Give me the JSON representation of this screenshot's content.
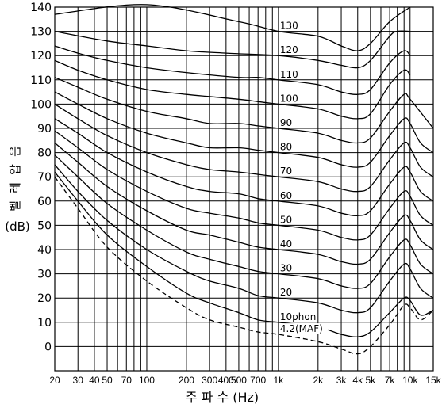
{
  "chart_data": {
    "type": "line",
    "xlabel": "주 파 수 (Hz)",
    "ylabel_lines": [
      "음",
      "압",
      "레",
      "벨",
      "(dB)"
    ],
    "x_scale": "log",
    "xlim": [
      20,
      15000
    ],
    "ylim": [
      -10,
      140
    ],
    "grid": true,
    "x_ticks": [
      {
        "value": 20,
        "label": "20"
      },
      {
        "value": 30,
        "label": "30"
      },
      {
        "value": 40,
        "label": "40"
      },
      {
        "value": 50,
        "label": "50"
      },
      {
        "value": 70,
        "label": "70"
      },
      {
        "value": 100,
        "label": "100"
      },
      {
        "value": 200,
        "label": "200"
      },
      {
        "value": 300,
        "label": "300"
      },
      {
        "value": 400,
        "label": "400"
      },
      {
        "value": 500,
        "label": "500"
      },
      {
        "value": 700,
        "label": "700"
      },
      {
        "value": 1000,
        "label": "1k"
      },
      {
        "value": 2000,
        "label": "2k"
      },
      {
        "value": 3000,
        "label": "3k"
      },
      {
        "value": 4000,
        "label": "4k"
      },
      {
        "value": 5000,
        "label": "5k"
      },
      {
        "value": 7000,
        "label": "7k"
      },
      {
        "value": 10000,
        "label": "10k"
      },
      {
        "value": 15000,
        "label": "15k"
      }
    ],
    "y_ticks": [
      0,
      10,
      20,
      30,
      40,
      50,
      60,
      70,
      80,
      90,
      100,
      110,
      120,
      130,
      140
    ],
    "x_gridlines": [
      20,
      30,
      40,
      50,
      60,
      70,
      80,
      90,
      100,
      200,
      300,
      400,
      500,
      600,
      700,
      800,
      900,
      1000,
      2000,
      3000,
      4000,
      5000,
      6000,
      7000,
      8000,
      9000,
      10000,
      15000
    ],
    "series": [
      {
        "name": "130",
        "label": "130",
        "x": [
          20,
          100,
          500,
          1000,
          2000,
          3000,
          4000,
          5000,
          7000,
          10000
        ],
        "y": [
          137,
          141,
          134,
          130,
          128,
          124,
          122,
          125,
          134,
          140
        ]
      },
      {
        "name": "120",
        "label": "120",
        "x": [
          20,
          50,
          100,
          200,
          400,
          1000,
          2000,
          3000,
          4000,
          5000,
          7000,
          8000,
          10000
        ],
        "y": [
          130,
          126,
          124,
          122,
          121,
          120,
          118,
          116,
          115,
          118,
          128,
          130,
          130
        ]
      },
      {
        "name": "110",
        "label": "110",
        "x": [
          20,
          30,
          50,
          100,
          200,
          500,
          700,
          1000,
          2000,
          3000,
          4000,
          5000,
          7000,
          9000,
          10000
        ],
        "y": [
          124,
          121,
          118,
          115,
          113,
          111,
          111,
          110,
          108,
          105,
          104,
          106,
          117,
          122,
          120
        ]
      },
      {
        "name": "100",
        "label": "100",
        "x": [
          20,
          30,
          50,
          100,
          200,
          500,
          700,
          1000,
          2000,
          3000,
          4000,
          5000,
          7000,
          9000,
          10000
        ],
        "y": [
          118,
          114,
          110,
          106,
          104,
          102,
          101,
          100,
          98,
          95,
          94,
          96,
          108,
          114,
          112
        ]
      },
      {
        "name": "90",
        "label": "90",
        "x": [
          20,
          30,
          50,
          100,
          200,
          300,
          500,
          700,
          1000,
          2000,
          3000,
          4000,
          5000,
          7000,
          9000,
          10000,
          15000
        ],
        "y": [
          111,
          107,
          102,
          97,
          94,
          92,
          92,
          91,
          90,
          88,
          85,
          84,
          86,
          97,
          104,
          102,
          90
        ]
      },
      {
        "name": "80",
        "label": "80",
        "x": [
          20,
          30,
          50,
          100,
          200,
          300,
          500,
          700,
          1000,
          2000,
          3000,
          4000,
          5000,
          7000,
          9000,
          10000,
          12000,
          15000
        ],
        "y": [
          105,
          100,
          94,
          88,
          84,
          82,
          82,
          81,
          80,
          78,
          75,
          74,
          76,
          87,
          94,
          92,
          84,
          80
        ]
      },
      {
        "name": "70",
        "label": "70",
        "x": [
          20,
          30,
          50,
          100,
          200,
          300,
          500,
          700,
          1000,
          2000,
          3000,
          4000,
          5000,
          7000,
          9000,
          10000,
          12000,
          15000
        ],
        "y": [
          100,
          94,
          87,
          80,
          75,
          73,
          72,
          71,
          70,
          68,
          65,
          64,
          66,
          77,
          84,
          82,
          74,
          70
        ]
      },
      {
        "name": "60",
        "label": "60",
        "x": [
          20,
          30,
          50,
          100,
          200,
          300,
          500,
          700,
          1000,
          2000,
          3000,
          4000,
          5000,
          7000,
          9000,
          10000,
          12000,
          15000
        ],
        "y": [
          94,
          88,
          80,
          72,
          66,
          64,
          63,
          61,
          60,
          58,
          55,
          54,
          56,
          67,
          74,
          72,
          64,
          60
        ]
      },
      {
        "name": "50",
        "label": "50",
        "x": [
          20,
          30,
          50,
          100,
          200,
          300,
          500,
          700,
          1000,
          2000,
          3000,
          4000,
          5000,
          7000,
          9000,
          10000,
          12000,
          15000
        ],
        "y": [
          89,
          82,
          73,
          64,
          57,
          55,
          53,
          51,
          50,
          48,
          45,
          44,
          46,
          57,
          64,
          62,
          54,
          50
        ]
      },
      {
        "name": "40",
        "label": "40",
        "x": [
          20,
          30,
          50,
          100,
          200,
          300,
          500,
          700,
          1000,
          2000,
          3000,
          4000,
          5000,
          7000,
          9000,
          10000,
          12000,
          15000
        ],
        "y": [
          84,
          76,
          66,
          56,
          48,
          46,
          43,
          41,
          40,
          38,
          35,
          34,
          36,
          47,
          54,
          52,
          44,
          40
        ]
      },
      {
        "name": "30",
        "label": "30",
        "x": [
          20,
          30,
          50,
          100,
          200,
          300,
          500,
          700,
          1000,
          2000,
          3000,
          4000,
          5000,
          7000,
          9000,
          10000,
          12000,
          15000
        ],
        "y": [
          79,
          70,
          59,
          48,
          39,
          36,
          33,
          31,
          30,
          28,
          25,
          24,
          26,
          37,
          44,
          42,
          34,
          30
        ]
      },
      {
        "name": "20",
        "label": "20",
        "x": [
          20,
          30,
          50,
          100,
          200,
          300,
          500,
          700,
          1000,
          2000,
          3000,
          4000,
          5000,
          7000,
          9000,
          10000,
          12000,
          15000
        ],
        "y": [
          75,
          64,
          52,
          40,
          31,
          27,
          24,
          21,
          20,
          18,
          15,
          14,
          16,
          27,
          34,
          32,
          24,
          20
        ]
      },
      {
        "name": "10phon",
        "label": "10phon",
        "x": [
          20,
          30,
          50,
          100,
          200,
          300,
          500,
          700,
          1000,
          2000,
          3000,
          4000,
          5000,
          7000,
          9000,
          10000,
          12000,
          15000
        ],
        "y": [
          72,
          60,
          46,
          33,
          22,
          18,
          14,
          11,
          10,
          8,
          5,
          4,
          6,
          14,
          20,
          19,
          13,
          15
        ]
      },
      {
        "name": "4.2(MAF)",
        "label": "4.2(MAF)",
        "dashed": true,
        "x": [
          20,
          30,
          50,
          100,
          200,
          300,
          500,
          700,
          1000,
          2000,
          3000,
          4000,
          5000,
          7000,
          9000,
          10000,
          12000,
          15000
        ],
        "y": [
          70,
          57,
          41,
          27,
          16,
          11,
          8,
          6,
          5,
          2,
          -1,
          -3,
          0,
          9,
          17,
          16,
          11,
          15
        ]
      }
    ]
  }
}
